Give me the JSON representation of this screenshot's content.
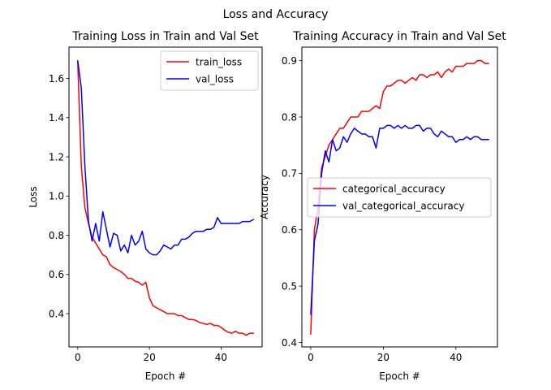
{
  "figure": {
    "suptitle": "Loss and Accuracy"
  },
  "chart_data": [
    {
      "type": "line",
      "title": "Training Loss in Train and Val Set",
      "xlabel": "Epoch #",
      "ylabel": "Loss",
      "xlim": [
        -2.45,
        51.45
      ],
      "ylim": [
        0.23,
        1.76
      ],
      "xticks": [
        0,
        20,
        40
      ],
      "yticks": [
        0.4,
        0.6,
        0.8,
        1.0,
        1.2,
        1.4,
        1.6
      ],
      "ytick_labels": [
        "0.4",
        "0.6",
        "0.8",
        "1.0",
        "1.2",
        "1.4",
        "1.6"
      ],
      "grid": false,
      "legend": "top-right",
      "x": [
        0,
        1,
        2,
        3,
        4,
        5,
        6,
        7,
        8,
        9,
        10,
        11,
        12,
        13,
        14,
        15,
        16,
        17,
        18,
        19,
        20,
        21,
        22,
        23,
        24,
        25,
        26,
        27,
        28,
        29,
        30,
        31,
        32,
        33,
        34,
        35,
        36,
        37,
        38,
        39,
        40,
        41,
        42,
        43,
        44,
        45,
        46,
        47,
        48,
        49
      ],
      "series": [
        {
          "name": "train_loss",
          "color": "#ff0000",
          "values": [
            1.68,
            1.15,
            0.94,
            0.86,
            0.79,
            0.76,
            0.73,
            0.7,
            0.69,
            0.65,
            0.635,
            0.625,
            0.615,
            0.6,
            0.58,
            0.58,
            0.565,
            0.56,
            0.545,
            0.56,
            0.48,
            0.44,
            0.43,
            0.42,
            0.41,
            0.4,
            0.4,
            0.4,
            0.39,
            0.39,
            0.38,
            0.37,
            0.37,
            0.365,
            0.355,
            0.35,
            0.345,
            0.35,
            0.34,
            0.34,
            0.33,
            0.315,
            0.305,
            0.3,
            0.31,
            0.3,
            0.3,
            0.29,
            0.3,
            0.3
          ]
        },
        {
          "name": "val_loss",
          "color": "#0000ff",
          "values": [
            1.69,
            1.55,
            1.15,
            0.87,
            0.77,
            0.86,
            0.77,
            0.92,
            0.83,
            0.74,
            0.81,
            0.8,
            0.72,
            0.75,
            0.71,
            0.8,
            0.75,
            0.77,
            0.82,
            0.73,
            0.71,
            0.7,
            0.7,
            0.72,
            0.75,
            0.74,
            0.73,
            0.75,
            0.75,
            0.78,
            0.78,
            0.79,
            0.81,
            0.82,
            0.82,
            0.82,
            0.83,
            0.83,
            0.84,
            0.89,
            0.86,
            0.86,
            0.86,
            0.86,
            0.86,
            0.86,
            0.87,
            0.87,
            0.87,
            0.88
          ]
        }
      ]
    },
    {
      "type": "line",
      "title": "Training Accuracy in Train and Val Set",
      "xlabel": "Epoch #",
      "ylabel": "Accuracy",
      "xlim": [
        -2.45,
        51.45
      ],
      "ylim": [
        0.392,
        0.924
      ],
      "xticks": [
        0,
        20,
        40
      ],
      "yticks": [
        0.4,
        0.5,
        0.6,
        0.7,
        0.8,
        0.9
      ],
      "ytick_labels": [
        "0.4",
        "0.5",
        "0.6",
        "0.7",
        "0.8",
        "0.9"
      ],
      "grid": false,
      "legend": "center-right",
      "x": [
        0,
        1,
        2,
        3,
        4,
        5,
        6,
        7,
        8,
        9,
        10,
        11,
        12,
        13,
        14,
        15,
        16,
        17,
        18,
        19,
        20,
        21,
        22,
        23,
        24,
        25,
        26,
        27,
        28,
        29,
        30,
        31,
        32,
        33,
        34,
        35,
        36,
        37,
        38,
        39,
        40,
        41,
        42,
        43,
        44,
        45,
        46,
        47,
        48,
        49
      ],
      "series": [
        {
          "name": "categorical_accuracy",
          "color": "#ff0000",
          "values": [
            0.415,
            0.6,
            0.64,
            0.71,
            0.73,
            0.75,
            0.76,
            0.77,
            0.78,
            0.78,
            0.79,
            0.8,
            0.8,
            0.8,
            0.81,
            0.81,
            0.81,
            0.815,
            0.82,
            0.815,
            0.845,
            0.855,
            0.855,
            0.86,
            0.865,
            0.865,
            0.86,
            0.865,
            0.87,
            0.865,
            0.875,
            0.875,
            0.87,
            0.875,
            0.875,
            0.88,
            0.87,
            0.88,
            0.885,
            0.88,
            0.89,
            0.89,
            0.89,
            0.895,
            0.895,
            0.895,
            0.9,
            0.9,
            0.895,
            0.895
          ]
        },
        {
          "name": "val_categorical_accuracy",
          "color": "#0000ff",
          "values": [
            0.45,
            0.58,
            0.61,
            0.7,
            0.74,
            0.72,
            0.76,
            0.74,
            0.745,
            0.765,
            0.755,
            0.77,
            0.78,
            0.775,
            0.77,
            0.77,
            0.765,
            0.765,
            0.745,
            0.78,
            0.78,
            0.785,
            0.785,
            0.78,
            0.785,
            0.78,
            0.785,
            0.78,
            0.78,
            0.785,
            0.785,
            0.775,
            0.78,
            0.78,
            0.77,
            0.765,
            0.775,
            0.77,
            0.765,
            0.765,
            0.755,
            0.76,
            0.76,
            0.765,
            0.76,
            0.765,
            0.765,
            0.76,
            0.76,
            0.76
          ]
        }
      ]
    }
  ]
}
